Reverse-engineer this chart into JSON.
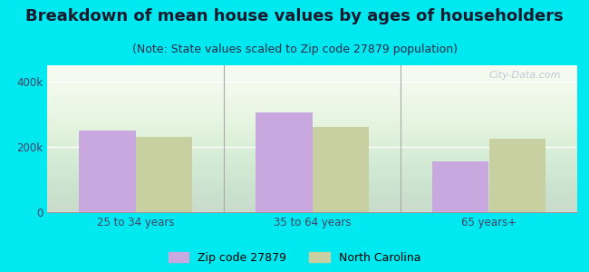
{
  "title": "Breakdown of mean house values by ages of householders",
  "subtitle": "(Note: State values scaled to Zip code 27879 population)",
  "categories": [
    "25 to 34 years",
    "35 to 64 years",
    "65 years+"
  ],
  "zip_values": [
    250000,
    305000,
    155000
  ],
  "nc_values": [
    230000,
    260000,
    225000
  ],
  "zip_color": "#c9a8e0",
  "nc_color": "#c8cfa0",
  "ylim": [
    0,
    450000
  ],
  "yticks": [
    0,
    200000,
    400000
  ],
  "ytick_labels": [
    "0",
    "200k",
    "400k"
  ],
  "legend_zip": "Zip code 27879",
  "legend_nc": "North Carolina",
  "bg_outer": "#00e8f0",
  "watermark": "City-Data.com",
  "bar_width": 0.32,
  "title_fontsize": 13,
  "subtitle_fontsize": 9,
  "title_color": "#1a1a2e",
  "subtitle_color": "#2a2a4a",
  "tick_color": "#444466",
  "divider_color": "#aaaaaa"
}
